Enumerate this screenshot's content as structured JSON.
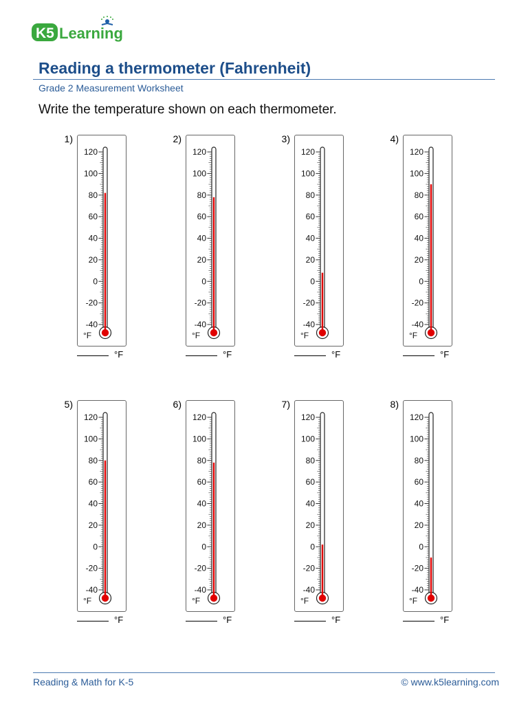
{
  "brand": {
    "logo_text": "K5Learning",
    "colors": {
      "green": "#3aa83e",
      "blue": "#1f5fa8",
      "heading": "#1d4e8a",
      "mercury": "#e00000"
    }
  },
  "header": {
    "title": "Reading a thermometer (Fahrenheit)",
    "subtitle": "Grade 2 Measurement Worksheet"
  },
  "instructions": "Write the temperature shown on each thermometer.",
  "scale": {
    "min": -40,
    "max": 120,
    "major_step": 20,
    "minor_step": 2,
    "labels": [
      "120",
      "100",
      "80",
      "60",
      "40",
      "20",
      "0",
      "-20",
      "-40"
    ],
    "unit_label": "°F"
  },
  "answer_unit": "°F",
  "problems": [
    {
      "number": "1)",
      "temperature": 82
    },
    {
      "number": "2)",
      "temperature": 78
    },
    {
      "number": "3)",
      "temperature": 8
    },
    {
      "number": "4)",
      "temperature": 90
    },
    {
      "number": "5)",
      "temperature": 80
    },
    {
      "number": "6)",
      "temperature": 78
    },
    {
      "number": "7)",
      "temperature": 2
    },
    {
      "number": "8)",
      "temperature": -10
    }
  ],
  "footer": {
    "left": "Reading & Math for K-5",
    "right": "© www.k5learning.com"
  }
}
